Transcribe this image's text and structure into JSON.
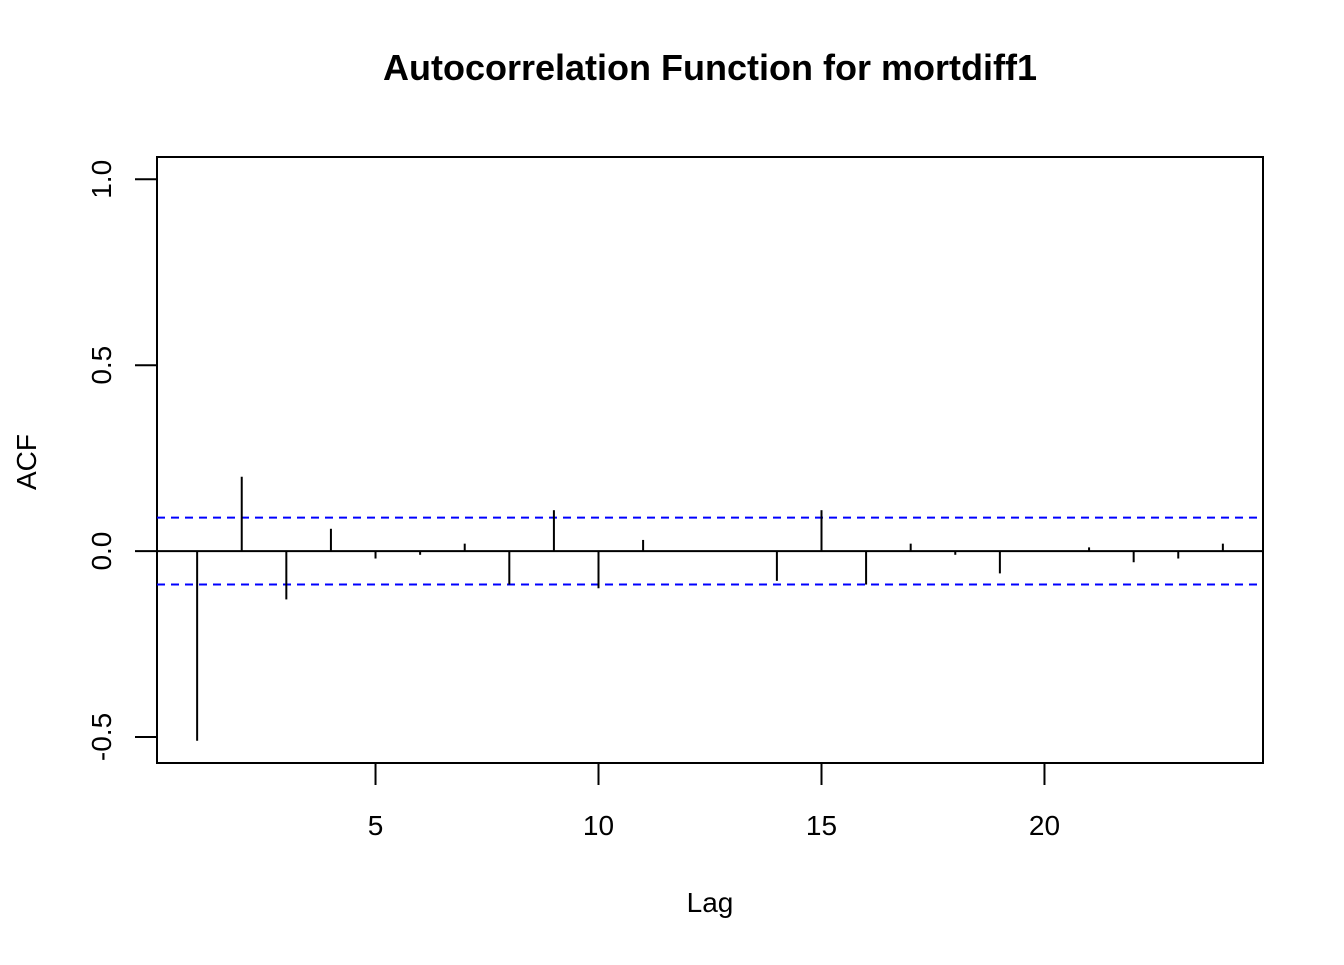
{
  "chart_data": {
    "type": "bar",
    "subtype": "acf-stem",
    "title": "Autocorrelation Function for mortdiff1",
    "xlabel": "Lag",
    "ylabel": "ACF",
    "xlim": [
      0.1,
      24.9
    ],
    "ylim": [
      -0.57,
      1.06
    ],
    "x_ticks": [
      5,
      10,
      15,
      20
    ],
    "x_tick_labels": [
      "5",
      "10",
      "15",
      "20"
    ],
    "y_ticks": [
      -0.5,
      0.0,
      0.5,
      1.0
    ],
    "y_tick_labels": [
      "-0.5",
      "0.0",
      "0.5",
      "1.0"
    ],
    "lags": [
      1,
      2,
      3,
      4,
      5,
      6,
      7,
      8,
      9,
      10,
      11,
      12,
      13,
      14,
      15,
      16,
      17,
      18,
      19,
      20,
      21,
      22,
      23,
      24
    ],
    "values": [
      -0.51,
      0.2,
      -0.13,
      0.06,
      -0.02,
      -0.01,
      0.02,
      -0.09,
      0.11,
      -0.1,
      0.03,
      0.0,
      0.0,
      -0.08,
      0.11,
      -0.09,
      0.02,
      -0.01,
      -0.06,
      0.0,
      0.01,
      -0.03,
      -0.02,
      0.02
    ],
    "confidence_bound": 0.09,
    "zero_line": true,
    "grid": false,
    "colors": {
      "bars": "#000000",
      "confidence": "#0000ff",
      "frame": "#000000"
    }
  }
}
